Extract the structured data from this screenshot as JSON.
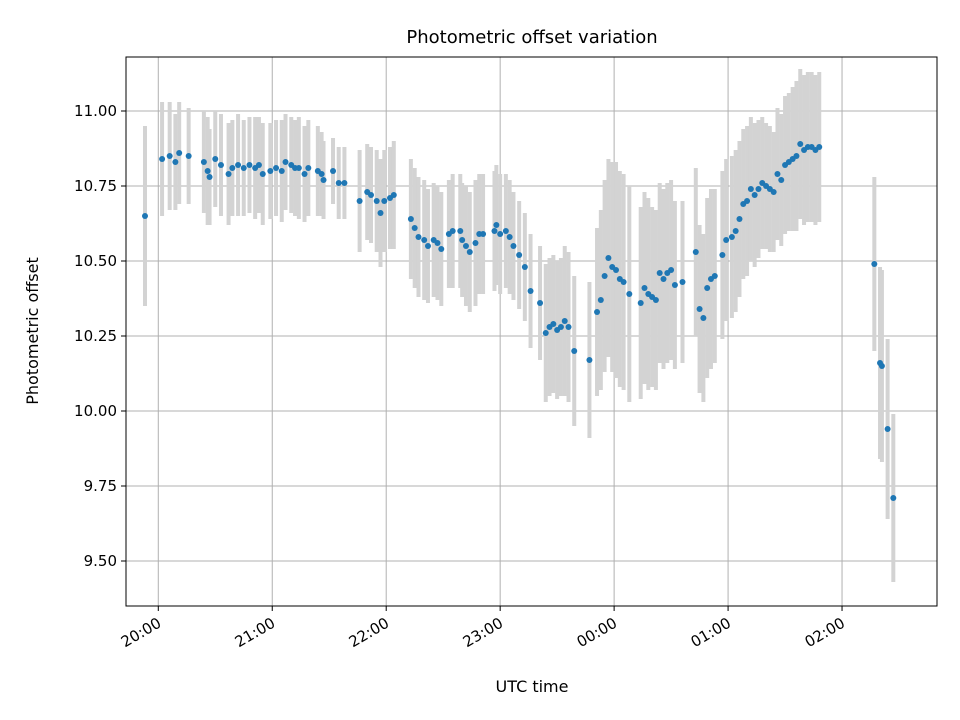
{
  "chart_data": {
    "type": "scatter",
    "title": "Photometric offset variation",
    "xlabel": "UTC time",
    "ylabel": "Photometric offset",
    "x_unit": "hours UTC (19:50 to 02:47, crossing midnight)",
    "xlim": [
      "19:43",
      "02:50"
    ],
    "ylim": [
      9.35,
      11.18
    ],
    "x_ticks": [
      "20:00",
      "21:00",
      "22:00",
      "23:00",
      "00:00",
      "01:00",
      "02:00"
    ],
    "y_ticks": [
      "9.50",
      "9.75",
      "10.00",
      "10.25",
      "10.50",
      "10.75",
      "11.00"
    ],
    "grid": true,
    "colors": {
      "point": "#1f77b4",
      "errorbar": "#d3d3d3",
      "grid": "#b0b0b0"
    },
    "series": [
      {
        "points": [
          [
            "19:53",
            10.65,
            0.3
          ],
          [
            "20:02",
            10.84,
            0.19
          ],
          [
            "20:06",
            10.85,
            0.18
          ],
          [
            "20:09",
            10.83,
            0.16
          ],
          [
            "20:11",
            10.86,
            0.17
          ],
          [
            "20:16",
            10.85,
            0.16
          ],
          [
            "20:24",
            10.83,
            0.17
          ],
          [
            "20:26",
            10.8,
            0.18
          ],
          [
            "20:27",
            10.78,
            0.16
          ],
          [
            "20:30",
            10.84,
            0.16
          ],
          [
            "20:33",
            10.82,
            0.17
          ],
          [
            "20:37",
            10.79,
            0.17
          ],
          [
            "20:39",
            10.81,
            0.16
          ],
          [
            "20:42",
            10.82,
            0.17
          ],
          [
            "20:45",
            10.81,
            0.16
          ],
          [
            "20:48",
            10.82,
            0.16
          ],
          [
            "20:51",
            10.81,
            0.17
          ],
          [
            "20:53",
            10.82,
            0.16
          ],
          [
            "20:55",
            10.79,
            0.17
          ],
          [
            "20:59",
            10.8,
            0.16
          ],
          [
            "21:02",
            10.81,
            0.16
          ],
          [
            "21:05",
            10.8,
            0.17
          ],
          [
            "21:07",
            10.83,
            0.16
          ],
          [
            "21:10",
            10.82,
            0.16
          ],
          [
            "21:12",
            10.81,
            0.16
          ],
          [
            "21:14",
            10.81,
            0.17
          ],
          [
            "21:17",
            10.79,
            0.16
          ],
          [
            "21:19",
            10.81,
            0.16
          ],
          [
            "21:24",
            10.8,
            0.15
          ],
          [
            "21:26",
            10.79,
            0.14
          ],
          [
            "21:27",
            10.77,
            0.13
          ],
          [
            "21:32",
            10.8,
            0.11
          ],
          [
            "21:35",
            10.76,
            0.12
          ],
          [
            "21:38",
            10.76,
            0.12
          ],
          [
            "21:46",
            10.7,
            0.17
          ],
          [
            "21:50",
            10.73,
            0.16
          ],
          [
            "21:52",
            10.72,
            0.16
          ],
          [
            "21:55",
            10.7,
            0.17
          ],
          [
            "21:57",
            10.66,
            0.18
          ],
          [
            "21:59",
            10.7,
            0.17
          ],
          [
            "22:02",
            10.71,
            0.17
          ],
          [
            "22:04",
            10.72,
            0.18
          ],
          [
            "22:13",
            10.64,
            0.2
          ],
          [
            "22:15",
            10.61,
            0.2
          ],
          [
            "22:17",
            10.58,
            0.2
          ],
          [
            "22:20",
            10.57,
            0.2
          ],
          [
            "22:22",
            10.55,
            0.19
          ],
          [
            "22:25",
            10.57,
            0.19
          ],
          [
            "22:27",
            10.56,
            0.19
          ],
          [
            "22:29",
            10.54,
            0.19
          ],
          [
            "22:33",
            10.59,
            0.18
          ],
          [
            "22:35",
            10.6,
            0.19
          ],
          [
            "22:39",
            10.6,
            0.19
          ],
          [
            "22:40",
            10.57,
            0.19
          ],
          [
            "22:42",
            10.55,
            0.2
          ],
          [
            "22:44",
            10.53,
            0.2
          ],
          [
            "22:47",
            10.56,
            0.21
          ],
          [
            "22:49",
            10.59,
            0.2
          ],
          [
            "22:51",
            10.59,
            0.2
          ],
          [
            "22:57",
            10.6,
            0.2
          ],
          [
            "22:58",
            10.62,
            0.2
          ],
          [
            "23:00",
            10.59,
            0.2
          ],
          [
            "23:03",
            10.6,
            0.19
          ],
          [
            "23:05",
            10.58,
            0.19
          ],
          [
            "23:07",
            10.55,
            0.18
          ],
          [
            "23:10",
            10.52,
            0.18
          ],
          [
            "23:13",
            10.48,
            0.18
          ],
          [
            "23:16",
            10.4,
            0.19
          ],
          [
            "23:21",
            10.36,
            0.19
          ],
          [
            "23:24",
            10.26,
            0.23
          ],
          [
            "23:26",
            10.28,
            0.23
          ],
          [
            "23:28",
            10.29,
            0.23
          ],
          [
            "23:30",
            10.27,
            0.23
          ],
          [
            "23:32",
            10.28,
            0.23
          ],
          [
            "23:34",
            10.3,
            0.25
          ],
          [
            "23:36",
            10.28,
            0.25
          ],
          [
            "23:39",
            10.2,
            0.25
          ],
          [
            "23:47",
            10.17,
            0.26
          ],
          [
            "23:51",
            10.33,
            0.28
          ],
          [
            "23:53",
            10.37,
            0.3
          ],
          [
            "23:55",
            10.45,
            0.32
          ],
          [
            "23:57",
            10.51,
            0.33
          ],
          [
            "23:59",
            10.48,
            0.35
          ],
          [
            "00:01",
            10.47,
            0.36
          ],
          [
            "00:03",
            10.44,
            0.36
          ],
          [
            "00:05",
            10.43,
            0.36
          ],
          [
            "00:08",
            10.39,
            0.36
          ],
          [
            "00:14",
            10.36,
            0.32
          ],
          [
            "00:16",
            10.41,
            0.32
          ],
          [
            "00:18",
            10.39,
            0.32
          ],
          [
            "00:20",
            10.38,
            0.3
          ],
          [
            "00:22",
            10.37,
            0.3
          ],
          [
            "00:24",
            10.46,
            0.3
          ],
          [
            "00:26",
            10.44,
            0.3
          ],
          [
            "00:28",
            10.46,
            0.3
          ],
          [
            "00:30",
            10.47,
            0.3
          ],
          [
            "00:32",
            10.42,
            0.28
          ],
          [
            "00:36",
            10.43,
            0.27
          ],
          [
            "00:43",
            10.53,
            0.28
          ],
          [
            "00:45",
            10.34,
            0.28
          ],
          [
            "00:47",
            10.31,
            0.28
          ],
          [
            "00:49",
            10.41,
            0.3
          ],
          [
            "00:51",
            10.44,
            0.3
          ],
          [
            "00:53",
            10.45,
            0.29
          ],
          [
            "00:57",
            10.52,
            0.28
          ],
          [
            "00:59",
            10.57,
            0.27
          ],
          [
            "01:02",
            10.58,
            0.27
          ],
          [
            "01:04",
            10.6,
            0.27
          ],
          [
            "01:06",
            10.64,
            0.26
          ],
          [
            "01:08",
            10.69,
            0.25
          ],
          [
            "01:10",
            10.7,
            0.25
          ],
          [
            "01:12",
            10.74,
            0.24
          ],
          [
            "01:14",
            10.72,
            0.24
          ],
          [
            "01:16",
            10.74,
            0.23
          ],
          [
            "01:18",
            10.76,
            0.22
          ],
          [
            "01:20",
            10.75,
            0.21
          ],
          [
            "01:22",
            10.74,
            0.21
          ],
          [
            "01:24",
            10.73,
            0.2
          ],
          [
            "01:26",
            10.79,
            0.22
          ],
          [
            "01:28",
            10.77,
            0.22
          ],
          [
            "01:30",
            10.82,
            0.23
          ],
          [
            "01:32",
            10.83,
            0.23
          ],
          [
            "01:34",
            10.84,
            0.24
          ],
          [
            "01:36",
            10.85,
            0.25
          ],
          [
            "01:38",
            10.89,
            0.25
          ],
          [
            "01:40",
            10.87,
            0.25
          ],
          [
            "01:42",
            10.88,
            0.25
          ],
          [
            "01:44",
            10.88,
            0.25
          ],
          [
            "01:46",
            10.87,
            0.25
          ],
          [
            "01:48",
            10.88,
            0.25
          ],
          [
            "02:17",
            10.49,
            0.29
          ],
          [
            "02:20",
            10.16,
            0.32
          ],
          [
            "02:21",
            10.15,
            0.32
          ],
          [
            "02:24",
            9.94,
            0.3
          ],
          [
            "02:27",
            9.71,
            0.28
          ]
        ]
      }
    ]
  }
}
